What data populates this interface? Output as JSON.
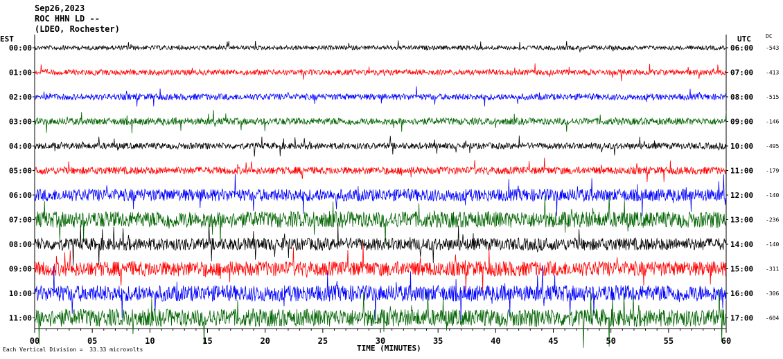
{
  "header": {
    "date": "Sep26,2023",
    "station": "ROC HHN LD --",
    "institution": "(LDEO, Rochester)"
  },
  "labels": {
    "left_zone": "EST",
    "right_zone": "UTC",
    "dc_header": "DC",
    "xlabel": "TIME (MINUTES)",
    "footnote": "Each Vertical Division =  33.33 microvolts"
  },
  "colors": {
    "trace_cycle": [
      "#000000",
      "#ff0000",
      "#0000ff",
      "#006400"
    ],
    "axis": "#000000",
    "background": "#ffffff"
  },
  "chart_data": {
    "type": "line",
    "title": "Sep26,2023 ROC HHN LD -- (LDEO, Rochester)",
    "xlabel": "TIME (MINUTES)",
    "xlim": [
      0,
      60
    ],
    "x_ticks": [
      "00",
      "05",
      "10",
      "15",
      "20",
      "25",
      "30",
      "35",
      "40",
      "45",
      "50",
      "55",
      "60"
    ],
    "rows": [
      {
        "est": "00:00",
        "utc": "06:00",
        "dc": "-543",
        "color": "#000000",
        "amplitude": 0.35
      },
      {
        "est": "01:00",
        "utc": "07:00",
        "dc": "-413",
        "color": "#ff0000",
        "amplitude": 0.45
      },
      {
        "est": "02:00",
        "utc": "08:00",
        "dc": "-515",
        "color": "#0000ff",
        "amplitude": 0.5
      },
      {
        "est": "03:00",
        "utc": "09:00",
        "dc": "-146",
        "color": "#006400",
        "amplitude": 0.55
      },
      {
        "est": "04:00",
        "utc": "10:00",
        "dc": "-495",
        "color": "#000000",
        "amplitude": 0.5
      },
      {
        "est": "05:00",
        "utc": "11:00",
        "dc": "-179",
        "color": "#ff0000",
        "amplitude": 0.6
      },
      {
        "est": "06:00",
        "utc": "12:00",
        "dc": "-140",
        "color": "#0000ff",
        "amplitude": 1.0
      },
      {
        "est": "07:00",
        "utc": "13:00",
        "dc": "-236",
        "color": "#006400",
        "amplitude": 1.3
      },
      {
        "est": "08:00",
        "utc": "14:00",
        "dc": "-140",
        "color": "#000000",
        "amplitude": 1.0
      },
      {
        "est": "09:00",
        "utc": "15:00",
        "dc": "-311",
        "color": "#ff0000",
        "amplitude": 1.2
      },
      {
        "est": "10:00",
        "utc": "16:00",
        "dc": "-306",
        "color": "#0000ff",
        "amplitude": 1.3
      },
      {
        "est": "11:00",
        "utc": "17:00",
        "dc": "-604",
        "color": "#006400",
        "amplitude": 1.4
      }
    ],
    "grid": false,
    "legend": "none"
  }
}
